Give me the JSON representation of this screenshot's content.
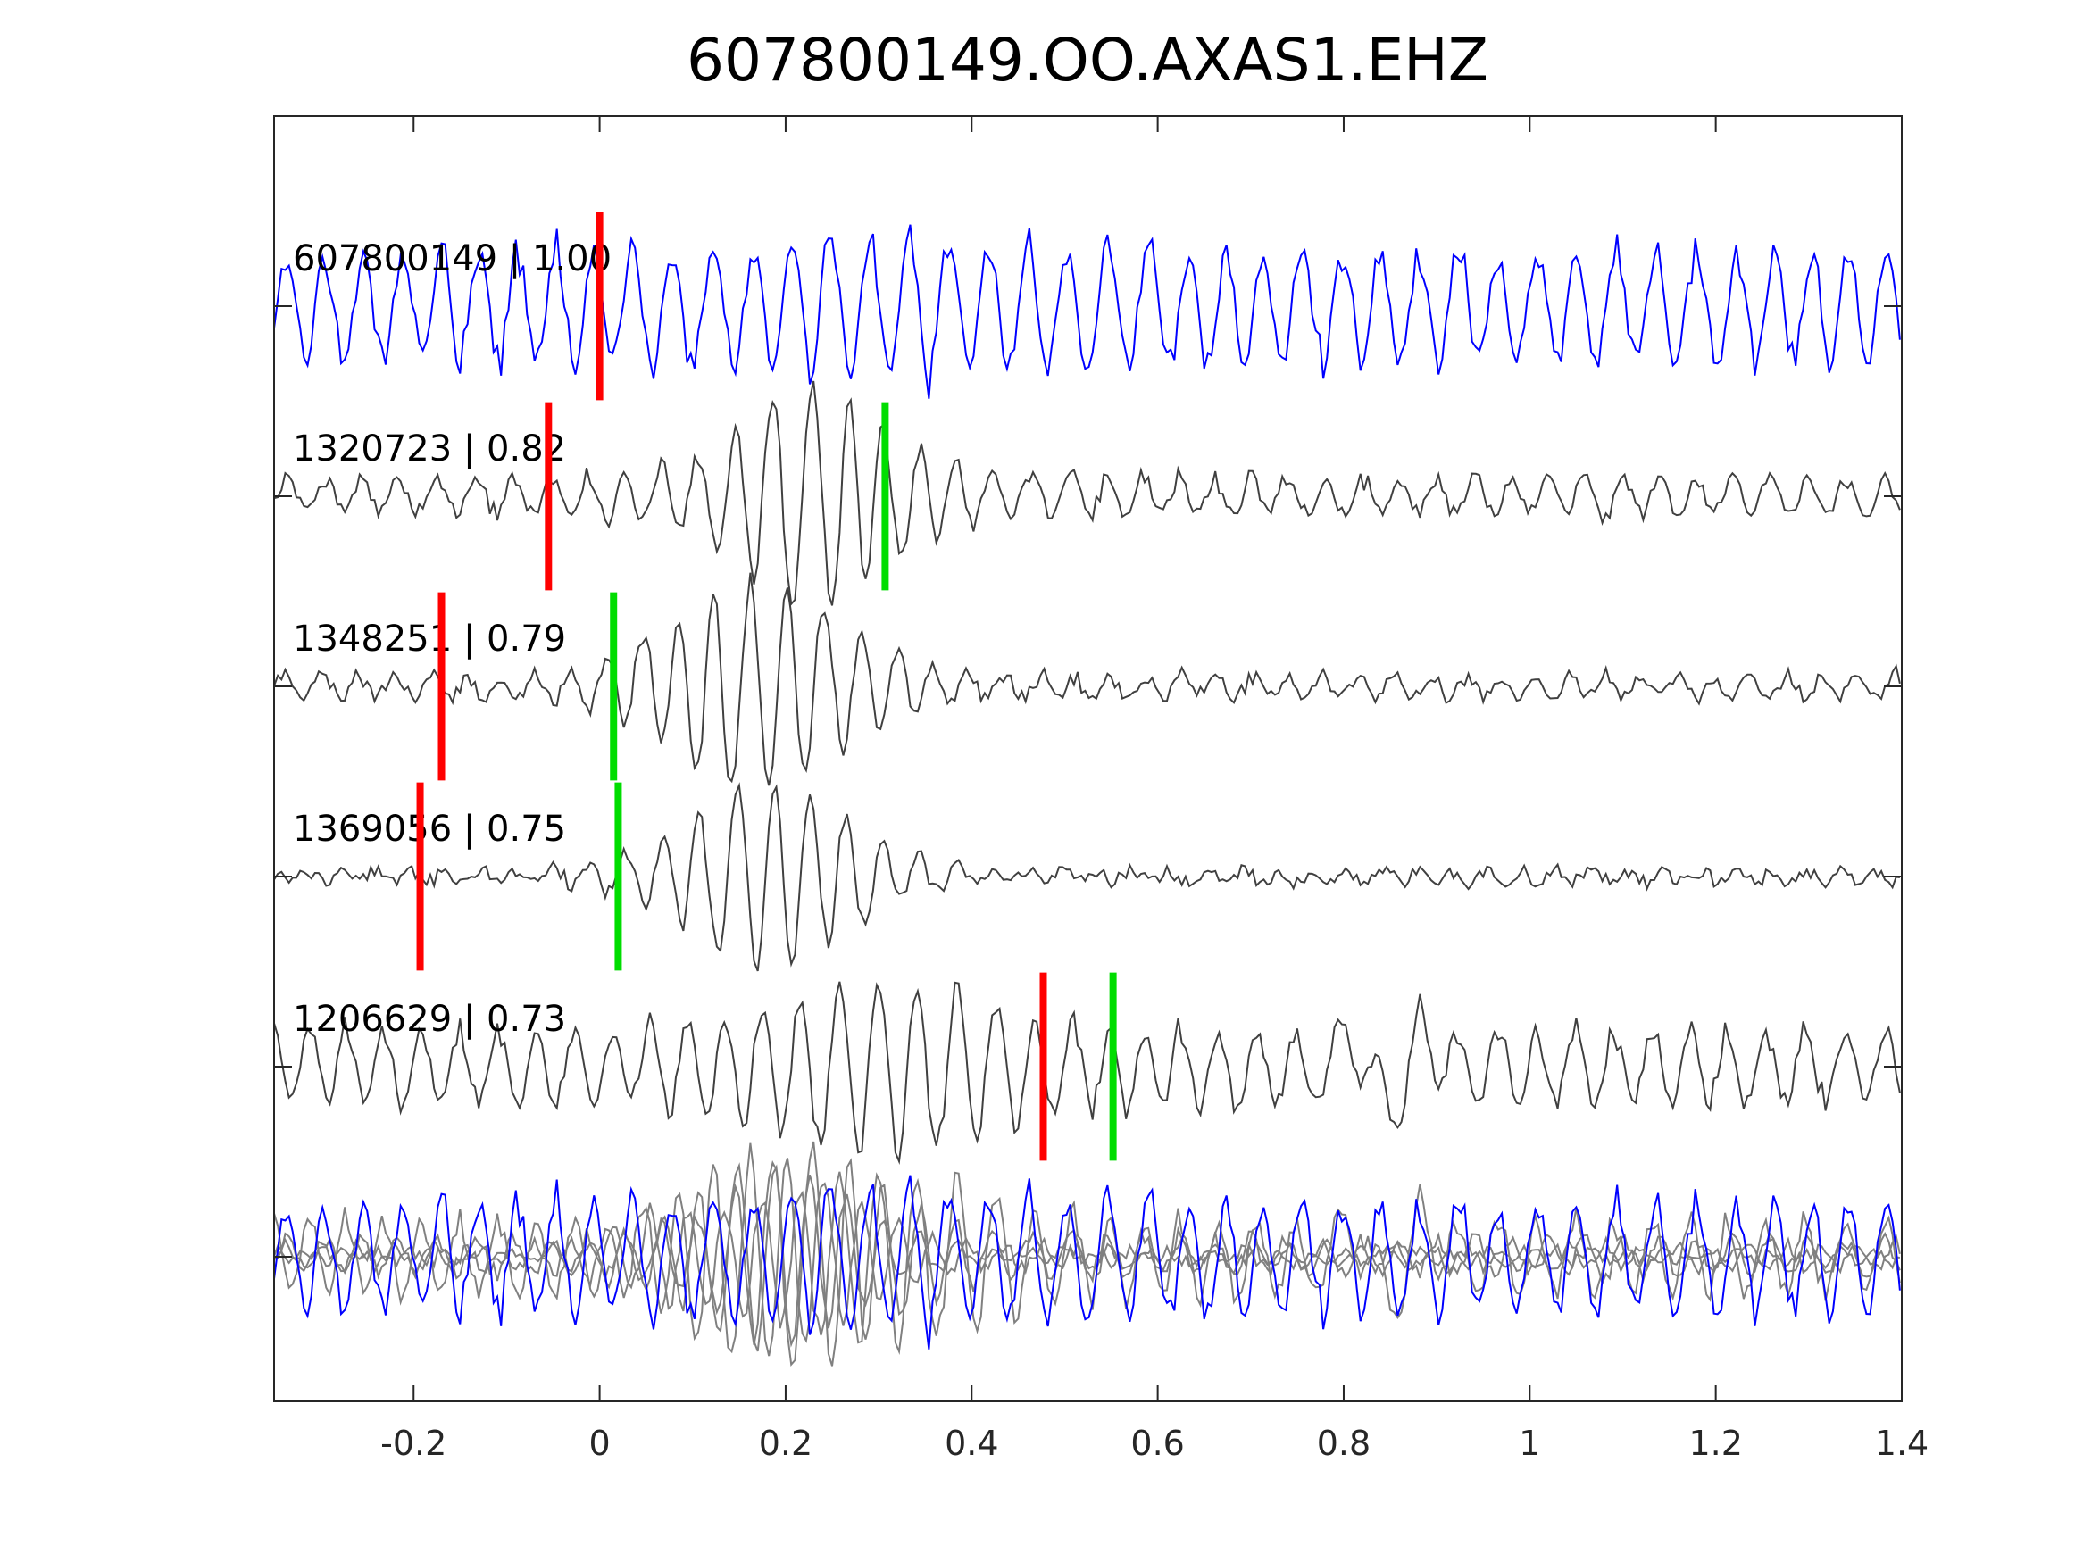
{
  "chart_data": {
    "type": "line",
    "title": "607800149.OO.AXAS1.EHZ",
    "xlabel": "",
    "ylabel": "",
    "xlim": [
      -0.35,
      1.4
    ],
    "xticks": [
      -0.2,
      0,
      0.2,
      0.4,
      0.6,
      0.8,
      1,
      1.2,
      1.4
    ],
    "xtick_labels": [
      "-0.2",
      "0",
      "0.2",
      "0.4",
      "0.6",
      "0.8",
      "1",
      "1.2",
      "1.4"
    ],
    "grid": false,
    "colors": {
      "master": "#0000ff",
      "trace": "#404040",
      "stack": "#808080",
      "p_pick": "#ff0000",
      "s_pick": "#00dd00"
    },
    "sample_interval": 0.004,
    "traces": [
      {
        "label": "607800149 | 1.00",
        "id": "607800149",
        "cc": 1.0,
        "color": "master",
        "p_pick": 0.0,
        "s_pick": null,
        "noise": 0.42,
        "burst_center": 0.3,
        "burst_amp": 0.1,
        "burst_width": 0.15,
        "freq": 24,
        "seed": 11
      },
      {
        "label": "1320723 | 0.82",
        "id": "1320723",
        "cc": 0.82,
        "color": "trace",
        "p_pick": -0.055,
        "s_pick": 0.307,
        "noise": 0.14,
        "burst_center": 0.23,
        "burst_amp": 0.55,
        "burst_width": 0.11,
        "freq": 25,
        "seed": 23
      },
      {
        "label": "1348251 | 0.79",
        "id": "1348251",
        "cc": 0.79,
        "color": "trace",
        "p_pick": -0.17,
        "s_pick": 0.015,
        "noise": 0.08,
        "burst_center": 0.17,
        "burst_amp": 0.55,
        "burst_width": 0.13,
        "freq": 26,
        "seed": 37
      },
      {
        "label": "1369056 | 0.75",
        "id": "1369056",
        "cc": 0.75,
        "color": "trace",
        "p_pick": -0.193,
        "s_pick": 0.02,
        "noise": 0.04,
        "burst_center": 0.18,
        "burst_amp": 0.5,
        "burst_width": 0.12,
        "freq": 26,
        "seed": 41
      },
      {
        "label": "1206629 | 0.73",
        "id": "1206629",
        "cc": 0.73,
        "color": "trace",
        "p_pick": 0.477,
        "s_pick": 0.552,
        "noise": 0.28,
        "burst_center": 0.3,
        "burst_amp": 0.3,
        "burst_width": 0.15,
        "freq": 24,
        "seed": 53
      }
    ],
    "stack": {
      "label": "overlay",
      "rows": 1
    }
  }
}
